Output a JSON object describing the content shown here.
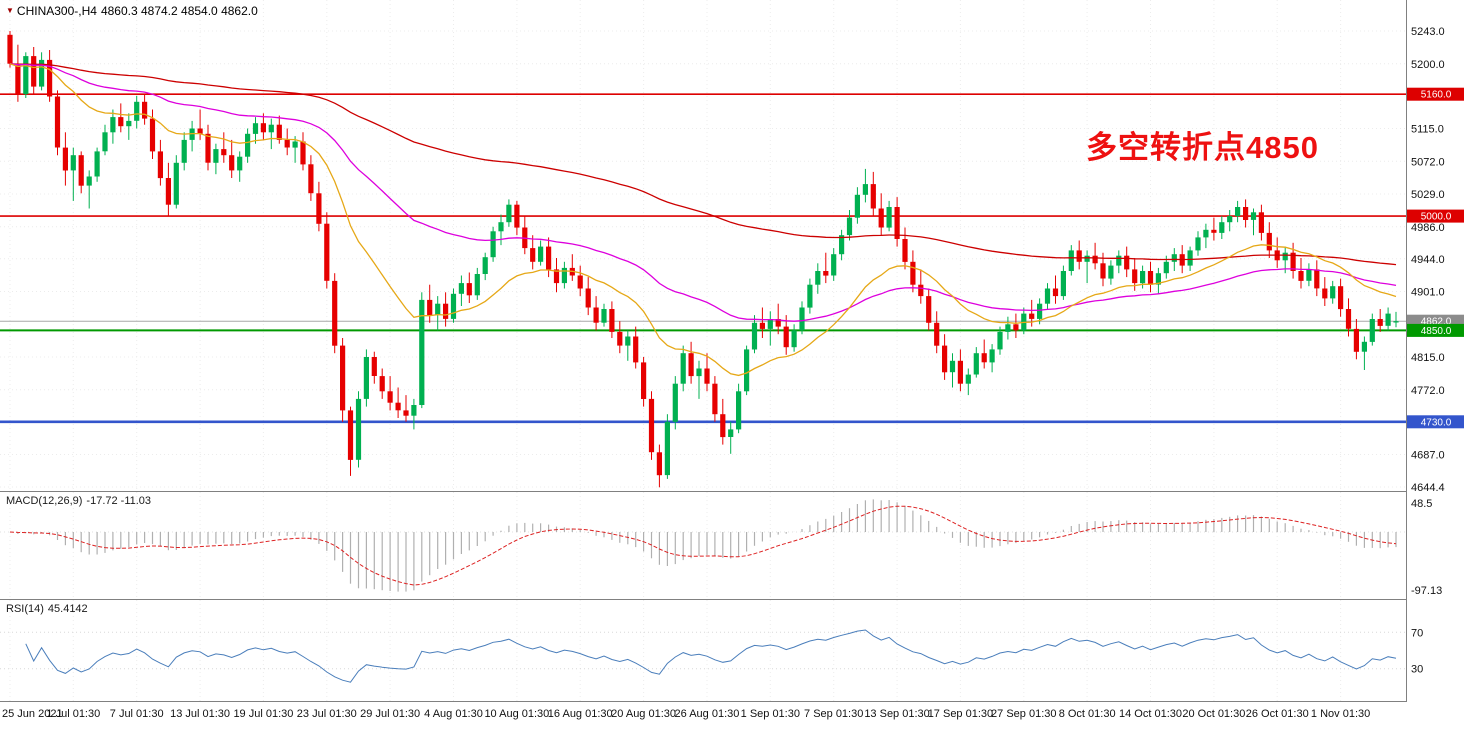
{
  "header": {
    "symbol": "CHINA300-,H4",
    "ohlc": "4860.3 4874.2 4854.0 4862.0"
  },
  "annotation": {
    "text": "多空转折点4850",
    "color": "#ee1111"
  },
  "macd_panel": {
    "label": "MACD(12,26,9)",
    "values": "-17.72 -11.03",
    "axis_max": "48.5",
    "axis_min": "-97.13"
  },
  "rsi_panel": {
    "label": "RSI(14)",
    "value": "45.4142",
    "level_high": "70",
    "level_low": "30"
  },
  "chart_data": {
    "type": "candlestick",
    "symbol": "CHINA300-",
    "timeframe": "H4",
    "price_axis": {
      "min": 4644.4,
      "max": 5243.0,
      "ticks": [
        5243.0,
        5200.0,
        5115.0,
        5072.0,
        5029.0,
        4986.0,
        4944.0,
        4901.0,
        4815.0,
        4772.0,
        4687.0,
        4644.4
      ]
    },
    "hlines": [
      {
        "price": 5160.0,
        "color": "#dd0000",
        "width": 1.6
      },
      {
        "price": 5000.0,
        "color": "#dd0000",
        "width": 1.6
      },
      {
        "price": 4850.0,
        "color": "#009900",
        "width": 2
      },
      {
        "price": 4730.0,
        "color": "#3355cc",
        "width": 2.6
      }
    ],
    "bid_line": {
      "price": 4862.0,
      "color": "#a8a8a8",
      "badge": "#8c8c8c"
    },
    "label_every": 8,
    "time_labels": [
      "25 Jun 2021",
      "1 Jul 01:30",
      "7 Jul 01:30",
      "13 Jul 01:30",
      "19 Jul 01:30",
      "23 Jul 01:30",
      "29 Jul 01:30",
      "4 Aug 01:30",
      "10 Aug 01:30",
      "16 Aug 01:30",
      "20 Aug 01:30",
      "26 Aug 01:30",
      "1 Sep 01:30",
      "7 Sep 01:30",
      "13 Sep 01:30",
      "17 Sep 01:30",
      "27 Sep 01:30",
      "8 Oct 01:30",
      "14 Oct 01:30",
      "20 Oct 01:30",
      "26 Oct 01:30",
      "1 Nov 01:30"
    ],
    "moving_averages": [
      {
        "period": 21,
        "method": "ema",
        "color": "#e6a817"
      },
      {
        "period": 55,
        "method": "ema",
        "color": "#dd00dd"
      },
      {
        "period": 144,
        "method": "ema",
        "color": "#cc0000"
      }
    ],
    "macd": {
      "fast": 12,
      "slow": 26,
      "signal": 9
    },
    "rsi_period": 14,
    "colors": {
      "bull": "#00b050",
      "bear": "#e60000",
      "grid": "#ececec",
      "macd_hist": "#b0b0b0",
      "macd_signal": "#dd2222",
      "rsi_line": "#4a7ebb"
    },
    "ohlc": [
      [
        5238,
        5243,
        5195,
        5200
      ],
      [
        5200,
        5225,
        5150,
        5160
      ],
      [
        5160,
        5215,
        5155,
        5210
      ],
      [
        5210,
        5222,
        5160,
        5170
      ],
      [
        5170,
        5215,
        5165,
        5205
      ],
      [
        5205,
        5218,
        5150,
        5157
      ],
      [
        5157,
        5165,
        5080,
        5090
      ],
      [
        5090,
        5110,
        5040,
        5060
      ],
      [
        5060,
        5090,
        5020,
        5080
      ],
      [
        5080,
        5085,
        5030,
        5040
      ],
      [
        5040,
        5060,
        5010,
        5052
      ],
      [
        5052,
        5090,
        5045,
        5085
      ],
      [
        5085,
        5120,
        5080,
        5110
      ],
      [
        5110,
        5140,
        5095,
        5130
      ],
      [
        5130,
        5148,
        5110,
        5118
      ],
      [
        5118,
        5135,
        5100,
        5125
      ],
      [
        5125,
        5158,
        5115,
        5150
      ],
      [
        5150,
        5160,
        5120,
        5128
      ],
      [
        5128,
        5140,
        5075,
        5085
      ],
      [
        5085,
        5100,
        5040,
        5050
      ],
      [
        5050,
        5070,
        5000,
        5015
      ],
      [
        5015,
        5080,
        5010,
        5070
      ],
      [
        5070,
        5110,
        5060,
        5100
      ],
      [
        5100,
        5125,
        5085,
        5115
      ],
      [
        5115,
        5140,
        5100,
        5108
      ],
      [
        5108,
        5120,
        5060,
        5070
      ],
      [
        5070,
        5095,
        5055,
        5088
      ],
      [
        5088,
        5110,
        5070,
        5080
      ],
      [
        5080,
        5100,
        5050,
        5060
      ],
      [
        5060,
        5085,
        5045,
        5078
      ],
      [
        5078,
        5115,
        5070,
        5108
      ],
      [
        5108,
        5130,
        5095,
        5122
      ],
      [
        5122,
        5135,
        5100,
        5110
      ],
      [
        5110,
        5128,
        5088,
        5120
      ],
      [
        5120,
        5132,
        5095,
        5100
      ],
      [
        5100,
        5115,
        5080,
        5090
      ],
      [
        5090,
        5105,
        5070,
        5098
      ],
      [
        5098,
        5110,
        5060,
        5068
      ],
      [
        5068,
        5080,
        5020,
        5030
      ],
      [
        5030,
        5045,
        4980,
        4990
      ],
      [
        4990,
        5005,
        4905,
        4915
      ],
      [
        4915,
        4925,
        4820,
        4830
      ],
      [
        4830,
        4840,
        4730,
        4745
      ],
      [
        4745,
        4750,
        4659,
        4680
      ],
      [
        4680,
        4770,
        4670,
        4760
      ],
      [
        4760,
        4825,
        4750,
        4815
      ],
      [
        4815,
        4822,
        4780,
        4790
      ],
      [
        4790,
        4800,
        4760,
        4770
      ],
      [
        4770,
        4790,
        4745,
        4755
      ],
      [
        4755,
        4775,
        4735,
        4745
      ],
      [
        4745,
        4765,
        4730,
        4738
      ],
      [
        4738,
        4760,
        4720,
        4752
      ],
      [
        4752,
        4900,
        4748,
        4890
      ],
      [
        4890,
        4910,
        4860,
        4870
      ],
      [
        4870,
        4895,
        4850,
        4885
      ],
      [
        4885,
        4900,
        4855,
        4865
      ],
      [
        4865,
        4905,
        4860,
        4898
      ],
      [
        4898,
        4922,
        4882,
        4912
      ],
      [
        4912,
        4926,
        4886,
        4896
      ],
      [
        4896,
        4932,
        4890,
        4924
      ],
      [
        4924,
        4952,
        4916,
        4946
      ],
      [
        4946,
        4986,
        4940,
        4980
      ],
      [
        4980,
        5002,
        4962,
        4992
      ],
      [
        4992,
        5022,
        4986,
        5015
      ],
      [
        5015,
        5020,
        4975,
        4985
      ],
      [
        4985,
        5000,
        4950,
        4958
      ],
      [
        4958,
        4975,
        4930,
        4940
      ],
      [
        4940,
        4968,
        4935,
        4960
      ],
      [
        4960,
        4972,
        4920,
        4930
      ],
      [
        4930,
        4945,
        4900,
        4912
      ],
      [
        4912,
        4940,
        4905,
        4932
      ],
      [
        4932,
        4950,
        4915,
        4922
      ],
      [
        4922,
        4935,
        4895,
        4905
      ],
      [
        4905,
        4920,
        4870,
        4880
      ],
      [
        4880,
        4895,
        4850,
        4860
      ],
      [
        4860,
        4885,
        4855,
        4878
      ],
      [
        4878,
        4888,
        4840,
        4848
      ],
      [
        4848,
        4862,
        4820,
        4830
      ],
      [
        4830,
        4850,
        4810,
        4842
      ],
      [
        4842,
        4855,
        4800,
        4808
      ],
      [
        4808,
        4815,
        4750,
        4760
      ],
      [
        4760,
        4770,
        4680,
        4690
      ],
      [
        4690,
        4700,
        4644,
        4660
      ],
      [
        4660,
        4740,
        4655,
        4730
      ],
      [
        4730,
        4790,
        4720,
        4780
      ],
      [
        4780,
        4830,
        4770,
        4820
      ],
      [
        4820,
        4835,
        4780,
        4790
      ],
      [
        4790,
        4810,
        4760,
        4800
      ],
      [
        4800,
        4820,
        4770,
        4780
      ],
      [
        4780,
        4790,
        4730,
        4740
      ],
      [
        4740,
        4760,
        4700,
        4710
      ],
      [
        4710,
        4730,
        4688,
        4720
      ],
      [
        4720,
        4780,
        4715,
        4770
      ],
      [
        4770,
        4830,
        4765,
        4825
      ],
      [
        4825,
        4870,
        4820,
        4860
      ],
      [
        4860,
        4880,
        4840,
        4852
      ],
      [
        4852,
        4875,
        4830,
        4865
      ],
      [
        4865,
        4885,
        4845,
        4855
      ],
      [
        4855,
        4870,
        4818,
        4828
      ],
      [
        4828,
        4858,
        4822,
        4850
      ],
      [
        4850,
        4888,
        4845,
        4880
      ],
      [
        4880,
        4918,
        4872,
        4910
      ],
      [
        4910,
        4938,
        4898,
        4928
      ],
      [
        4928,
        4952,
        4912,
        4922
      ],
      [
        4922,
        4958,
        4915,
        4950
      ],
      [
        4950,
        4982,
        4942,
        4975
      ],
      [
        4975,
        5008,
        4968,
        4998
      ],
      [
        4998,
        5038,
        4990,
        5028
      ],
      [
        5028,
        5062,
        5018,
        5042
      ],
      [
        5042,
        5058,
        5000,
        5010
      ],
      [
        5010,
        5030,
        4975,
        4985
      ],
      [
        4985,
        5020,
        4980,
        5012
      ],
      [
        5012,
        5025,
        4960,
        4970
      ],
      [
        4970,
        4985,
        4930,
        4940
      ],
      [
        4940,
        4955,
        4900,
        4910
      ],
      [
        4910,
        4930,
        4885,
        4895
      ],
      [
        4895,
        4905,
        4850,
        4860
      ],
      [
        4860,
        4875,
        4820,
        4830
      ],
      [
        4830,
        4845,
        4785,
        4795
      ],
      [
        4795,
        4820,
        4775,
        4810
      ],
      [
        4810,
        4825,
        4770,
        4780
      ],
      [
        4780,
        4800,
        4765,
        4792
      ],
      [
        4792,
        4828,
        4788,
        4820
      ],
      [
        4820,
        4838,
        4800,
        4808
      ],
      [
        4808,
        4832,
        4795,
        4825
      ],
      [
        4825,
        4855,
        4818,
        4848
      ],
      [
        4848,
        4868,
        4838,
        4858
      ],
      [
        4858,
        4872,
        4840,
        4850
      ],
      [
        4850,
        4880,
        4845,
        4872
      ],
      [
        4872,
        4890,
        4855,
        4865
      ],
      [
        4865,
        4892,
        4858,
        4885
      ],
      [
        4885,
        4912,
        4878,
        4905
      ],
      [
        4905,
        4922,
        4885,
        4895
      ],
      [
        4895,
        4935,
        4890,
        4928
      ],
      [
        4928,
        4962,
        4922,
        4955
      ],
      [
        4955,
        4968,
        4930,
        4940
      ],
      [
        4940,
        4955,
        4912,
        4948
      ],
      [
        4948,
        4965,
        4930,
        4938
      ],
      [
        4938,
        4952,
        4908,
        4918
      ],
      [
        4918,
        4942,
        4910,
        4935
      ],
      [
        4935,
        4955,
        4925,
        4948
      ],
      [
        4948,
        4960,
        4920,
        4930
      ],
      [
        4930,
        4945,
        4902,
        4912
      ],
      [
        4912,
        4935,
        4905,
        4928
      ],
      [
        4928,
        4940,
        4900,
        4910
      ],
      [
        4910,
        4932,
        4898,
        4925
      ],
      [
        4925,
        4948,
        4918,
        4940
      ],
      [
        4940,
        4958,
        4928,
        4950
      ],
      [
        4950,
        4962,
        4925,
        4935
      ],
      [
        4935,
        4960,
        4928,
        4955
      ],
      [
        4955,
        4980,
        4948,
        4972
      ],
      [
        4972,
        4990,
        4958,
        4982
      ],
      [
        4982,
        4998,
        4968,
        4978
      ],
      [
        4978,
        5000,
        4970,
        4992
      ],
      [
        4992,
        5008,
        4980,
        5000
      ],
      [
        5000,
        5020,
        4992,
        5012
      ],
      [
        5012,
        5022,
        4985,
        4995
      ],
      [
        4995,
        5010,
        4975,
        5005
      ],
      [
        5005,
        5015,
        4968,
        4978
      ],
      [
        4978,
        4992,
        4945,
        4955
      ],
      [
        4955,
        4972,
        4932,
        4942
      ],
      [
        4942,
        4960,
        4925,
        4952
      ],
      [
        4952,
        4965,
        4918,
        4928
      ],
      [
        4928,
        4945,
        4905,
        4915
      ],
      [
        4915,
        4938,
        4908,
        4930
      ],
      [
        4930,
        4942,
        4895,
        4905
      ],
      [
        4905,
        4920,
        4882,
        4892
      ],
      [
        4892,
        4915,
        4885,
        4908
      ],
      [
        4908,
        4918,
        4868,
        4878
      ],
      [
        4878,
        4892,
        4842,
        4852
      ],
      [
        4852,
        4865,
        4812,
        4822
      ],
      [
        4822,
        4842,
        4798,
        4835
      ],
      [
        4835,
        4872,
        4830,
        4865
      ],
      [
        4865,
        4878,
        4848,
        4856
      ],
      [
        4856,
        4880,
        4850,
        4872
      ],
      [
        4860.3,
        4874.2,
        4854.0,
        4862.0
      ]
    ]
  }
}
